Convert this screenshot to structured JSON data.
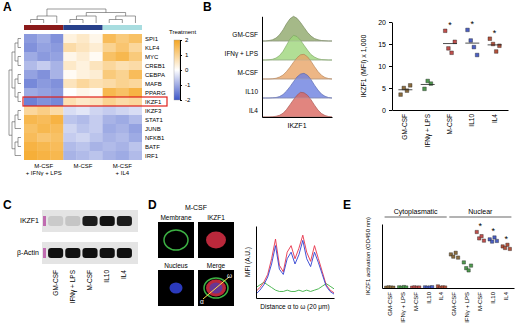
{
  "chart_data": [
    {
      "type": "heatmap",
      "panel": "A",
      "rows": [
        "SPI1",
        "KLF4",
        "MYC",
        "CREB1",
        "CEBPA",
        "MAFB",
        "PPARG",
        "IKZF1",
        "IKZF3",
        "STAT1",
        "JUNB",
        "NFKB1",
        "BATF",
        "IRF1"
      ],
      "group_labels": [
        [
          "M-CSF",
          "+ IFNγ + LPS"
        ],
        [
          "M-CSF"
        ],
        [
          "M-CSF",
          "+ IL4"
        ]
      ],
      "group_colors": [
        "#8b1a1a",
        "#27408b",
        "#a8dde0"
      ],
      "values": [
        [
          -1.2,
          -1.0,
          -1.3,
          0.3,
          0.5,
          0.2,
          1.5,
          1.2,
          1.4
        ],
        [
          -1.3,
          -1.1,
          -1.2,
          0.8,
          0.6,
          0.4,
          1.0,
          1.3,
          0.9
        ],
        [
          -1.0,
          -1.2,
          -1.1,
          0.2,
          0.4,
          0.1,
          1.4,
          1.6,
          1.2
        ],
        [
          -0.8,
          -0.6,
          -0.9,
          0.5,
          0.3,
          0.6,
          0.9,
          0.7,
          0.8
        ],
        [
          -1.1,
          -1.3,
          -0.9,
          0.1,
          0.3,
          0.4,
          1.2,
          1.0,
          1.5
        ],
        [
          -1.4,
          -1.2,
          -1.3,
          0.6,
          0.9,
          0.7,
          0.8,
          1.0,
          0.9
        ],
        [
          -1.0,
          -1.1,
          -1.2,
          0.0,
          0.2,
          0.1,
          1.6,
          1.4,
          1.7
        ],
        [
          -1.5,
          -1.3,
          -1.4,
          0.7,
          0.5,
          0.6,
          1.0,
          0.8,
          0.9
        ],
        [
          0.9,
          1.1,
          0.8,
          -0.4,
          -0.3,
          -0.5,
          -0.6,
          -0.5,
          -0.4
        ],
        [
          1.6,
          1.5,
          1.7,
          -0.7,
          -0.8,
          -0.6,
          -0.9,
          -1.0,
          -0.8
        ],
        [
          1.4,
          1.6,
          1.5,
          -0.5,
          -0.7,
          -0.6,
          -1.0,
          -0.9,
          -1.1
        ],
        [
          1.5,
          1.3,
          1.4,
          -0.6,
          -0.5,
          -0.7,
          -0.9,
          -0.8,
          -1.0
        ],
        [
          1.7,
          1.6,
          1.5,
          -0.8,
          -0.7,
          -0.9,
          -0.8,
          -0.9,
          -0.7
        ],
        [
          1.8,
          1.7,
          1.6,
          -0.9,
          -0.8,
          -0.7,
          -0.9,
          -1.0,
          -0.8
        ]
      ],
      "colorscale": [
        "#3d56c8",
        "#ffffff",
        "#f5a623"
      ],
      "colorbar_title": "Treatment",
      "colorbar_range": [
        -2,
        2
      ],
      "colorbar_ticks": [
        2,
        1,
        0,
        -1,
        -2
      ],
      "highlight_row": 7
    },
    {
      "type": "area",
      "panel": "B",
      "x": [
        0,
        1,
        2,
        3,
        4,
        5,
        6,
        7,
        8,
        9,
        10,
        11,
        12,
        13,
        14,
        15,
        16,
        17,
        18,
        19,
        20
      ],
      "xlim": [
        0,
        20
      ],
      "ylim": [
        0,
        1
      ],
      "tick_labels": false,
      "x_label": "IKZF1",
      "series": [
        {
          "name": "GM-CSF",
          "color": "#8fa86a",
          "values": [
            0,
            0,
            0.02,
            0.05,
            0.12,
            0.25,
            0.45,
            0.7,
            0.9,
            1,
            0.92,
            0.75,
            0.55,
            0.35,
            0.2,
            0.1,
            0.05,
            0.02,
            0.01,
            0,
            0
          ]
        },
        {
          "name": "IFNγ + LPS",
          "color": "#9ed67a",
          "values": [
            0,
            0,
            0.01,
            0.03,
            0.08,
            0.18,
            0.35,
            0.6,
            0.85,
            1,
            0.95,
            0.8,
            0.6,
            0.4,
            0.22,
            0.12,
            0.05,
            0.02,
            0.01,
            0,
            0
          ]
        },
        {
          "name": "M-CSF",
          "color": "#e8a467",
          "values": [
            0,
            0,
            0,
            0.01,
            0.03,
            0.08,
            0.16,
            0.3,
            0.48,
            0.68,
            0.86,
            0.98,
            1,
            0.9,
            0.72,
            0.5,
            0.3,
            0.15,
            0.06,
            0.02,
            0
          ]
        },
        {
          "name": "IL10",
          "color": "#6b7fe0",
          "values": [
            0,
            0,
            0,
            0.01,
            0.02,
            0.06,
            0.14,
            0.28,
            0.46,
            0.66,
            0.85,
            0.97,
            1,
            0.92,
            0.75,
            0.52,
            0.32,
            0.16,
            0.07,
            0.02,
            0
          ]
        },
        {
          "name": "IL4",
          "color": "#d9665f",
          "values": [
            0,
            0,
            0,
            0.01,
            0.03,
            0.07,
            0.15,
            0.3,
            0.5,
            0.7,
            0.88,
            1,
            0.98,
            0.88,
            0.7,
            0.48,
            0.28,
            0.14,
            0.06,
            0.02,
            0
          ]
        }
      ]
    },
    {
      "type": "scatter",
      "categories": [
        "GM-CSF",
        "IFNγ + LPS",
        "M-CSF",
        "IL10",
        "IL4"
      ],
      "values": [
        [
          3.5,
          5.0,
          4.4,
          5.6
        ],
        [
          4.8,
          6.6,
          6.0
        ],
        [
          18.0,
          14.0,
          13.0,
          15.5
        ],
        [
          18.2,
          15.8,
          14.3,
          12.5
        ],
        [
          16.2,
          15.0,
          13.3,
          14.6
        ]
      ],
      "means": [
        4.6,
        5.8,
        15.1,
        15.2,
        14.8
      ],
      "colors": [
        "#8c6d3f",
        "#4f9a4f",
        "#c0504d",
        "#4b5fc4",
        "#b5523b"
      ],
      "marker": "square",
      "y_label": "IKZF1 (MFI) x 1,000",
      "ylim": [
        0,
        20
      ],
      "yticks": [
        0,
        5,
        10,
        15,
        20
      ],
      "significance": [
        null,
        null,
        "*",
        "*",
        "*"
      ]
    },
    {
      "type": "blot",
      "panel": "C",
      "rows": [
        "IKZF1",
        "β-Actin"
      ],
      "categories": [
        "GM-CSF",
        "IFNγ + LPS",
        "M-CSF",
        "IL10",
        "IL4"
      ],
      "values": [
        [
          0.12,
          0.15,
          0.95,
          1,
          0.95
        ],
        [
          1,
          1,
          1,
          1,
          1
        ]
      ],
      "value_range": [
        0,
        1
      ]
    },
    {
      "type": "line",
      "panel": "D",
      "title": "M-CSF",
      "image_labels": [
        "Membrane",
        "IKZF1",
        "Nucleus",
        "Merge"
      ],
      "line_ends": [
        "α",
        "ω"
      ],
      "x": [
        0,
        1,
        2,
        3,
        4,
        5,
        6,
        7,
        8,
        9,
        10,
        11,
        12,
        13,
        14,
        15,
        16,
        17,
        18,
        19,
        20
      ],
      "xlim": [
        0,
        20
      ],
      "ylim": [
        0,
        55
      ],
      "tick_labels": false,
      "x_label": "Distance α to ω (20 μm)",
      "y_label": "MFI (A.U.)",
      "series": [
        {
          "color": "#3cb043",
          "values": [
            8,
            10,
            12,
            10,
            8,
            6,
            5,
            5,
            6,
            5,
            5,
            6,
            5,
            6,
            5,
            6,
            7,
            9,
            11,
            9,
            7
          ]
        },
        {
          "color": "#e8324a",
          "values": [
            5,
            8,
            12,
            18,
            30,
            45,
            25,
            20,
            35,
            40,
            30,
            38,
            48,
            35,
            28,
            40,
            30,
            20,
            10,
            6,
            4
          ]
        },
        {
          "color": "#3040d0",
          "values": [
            3,
            6,
            10,
            16,
            26,
            40,
            22,
            18,
            30,
            35,
            26,
            33,
            44,
            30,
            24,
            35,
            27,
            18,
            9,
            5,
            3
          ]
        }
      ]
    },
    {
      "type": "scatter",
      "panel": "E",
      "groups": [
        "Cytoplasmatic",
        "Nuclear"
      ],
      "categories": [
        "GM-CSF",
        "IFNγ + LPS",
        "M-CSF",
        "IL10",
        "IL4",
        "GM-CSF",
        "IFNγ + LPS",
        "M-CSF",
        "IL10",
        "IL4"
      ],
      "values": [
        [
          0.01,
          0.02,
          0.015,
          0.01
        ],
        [
          0.02,
          0.01,
          0.03,
          0.015
        ],
        [
          0.01,
          0.02,
          0.01,
          0.015
        ],
        [
          0.02,
          0.01,
          0.015,
          0.025
        ],
        [
          0.05,
          0.01,
          0.02,
          0.015
        ],
        [
          1.05,
          0.98,
          1.1,
          0.95
        ],
        [
          0.8,
          0.62,
          0.55,
          0.7
        ],
        [
          1.75,
          1.55,
          1.62,
          1.48
        ],
        [
          1.52,
          1.45,
          1.58,
          1.47
        ],
        [
          1.3,
          1.25,
          1.35,
          1.22
        ]
      ],
      "colors": [
        "#8c6d3f",
        "#4f9a4f",
        "#c0504d",
        "#4b5fc4",
        "#b5523b",
        "#8c6d3f",
        "#4f9a4f",
        "#c0504d",
        "#4b5fc4",
        "#b5523b"
      ],
      "marker": "square",
      "y_label": "IKZF1 activation (OD450 nm)",
      "ylim": [
        0,
        2
      ],
      "tick_labels": "x",
      "significance": [
        null,
        null,
        null,
        null,
        null,
        null,
        null,
        "*",
        "*",
        "*"
      ]
    }
  ]
}
